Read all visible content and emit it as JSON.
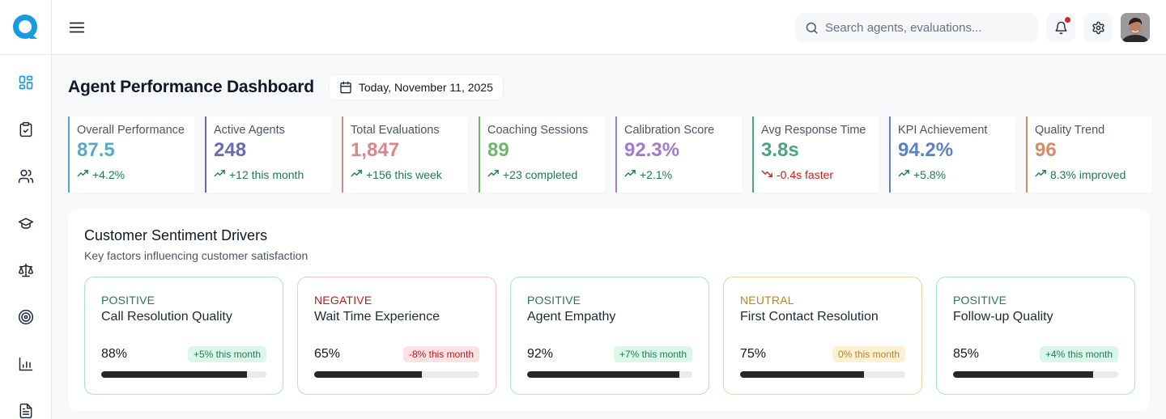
{
  "app": {
    "logo_letter": "Q",
    "brand_color": "#1a9be0"
  },
  "header": {
    "search_placeholder": "Search agents, evaluations...",
    "notification_dot": true
  },
  "sidebar": {
    "items": [
      {
        "name": "dashboard",
        "icon": "layout-grid-icon",
        "active": true
      },
      {
        "name": "evaluations",
        "icon": "clipboard-check-icon",
        "active": false
      },
      {
        "name": "agents",
        "icon": "users-icon",
        "active": false
      },
      {
        "name": "coaching",
        "icon": "graduation-cap-icon",
        "active": false
      },
      {
        "name": "calibration",
        "icon": "scale-icon",
        "active": false
      },
      {
        "name": "goals",
        "icon": "target-icon",
        "active": false
      },
      {
        "name": "reports",
        "icon": "bar-chart-icon",
        "active": false
      },
      {
        "name": "documents",
        "icon": "file-text-icon",
        "active": false
      }
    ]
  },
  "main": {
    "title": "Agent Performance Dashboard",
    "date": "Today, November 11, 2025",
    "kpis": [
      {
        "label": "Overall Performance",
        "value": "87.5",
        "delta": "+4.2%",
        "trend": "up",
        "color": "#5aa9c9"
      },
      {
        "label": "Active Agents",
        "value": "248",
        "delta": "+12 this month",
        "trend": "up",
        "color": "#6b68b5"
      },
      {
        "label": "Total Evaluations",
        "value": "1,847",
        "delta": "+156 this week",
        "trend": "up",
        "color": "#d9868a"
      },
      {
        "label": "Coaching Sessions",
        "value": "89",
        "delta": "+23 completed",
        "trend": "up",
        "color": "#6fb56a"
      },
      {
        "label": "Calibration Score",
        "value": "92.3%",
        "delta": "+2.1%",
        "trend": "up",
        "color": "#a47bc9"
      },
      {
        "label": "Avg Response Time",
        "value": "3.8s",
        "delta": "-0.4s faster",
        "trend": "down",
        "color": "#4ba582"
      },
      {
        "label": "KPI Achievement",
        "value": "94.2%",
        "delta": "+5.8%",
        "trend": "up",
        "color": "#5b82c4"
      },
      {
        "label": "Quality Trend",
        "value": "96",
        "delta": "8.3% improved",
        "trend": "up",
        "color": "#d98b66"
      }
    ],
    "sentiment": {
      "title": "Customer Sentiment Drivers",
      "subtitle": "Key factors influencing customer satisfaction",
      "drivers": [
        {
          "sentiment": "POSITIVE",
          "name": "Call Resolution Quality",
          "percent": "88%",
          "value": 88,
          "change": "+5% this month",
          "type": "positive"
        },
        {
          "sentiment": "NEGATIVE",
          "name": "Wait Time Experience",
          "percent": "65%",
          "value": 65,
          "change": "-8% this month",
          "type": "negative"
        },
        {
          "sentiment": "POSITIVE",
          "name": "Agent Empathy",
          "percent": "92%",
          "value": 92,
          "change": "+7% this month",
          "type": "positive"
        },
        {
          "sentiment": "NEUTRAL",
          "name": "First Contact Resolution",
          "percent": "75%",
          "value": 75,
          "change": "0% this month",
          "type": "neutral"
        },
        {
          "sentiment": "POSITIVE",
          "name": "Follow-up Quality",
          "percent": "85%",
          "value": 85,
          "change": "+4% this month",
          "type": "positive"
        }
      ]
    }
  },
  "theme": {
    "positive": {
      "text": "#1f7a55",
      "border": "#a7e3d4",
      "badge_bg": "#dcf7ea",
      "badge_text": "#1f7a55"
    },
    "negative": {
      "text": "#b91c1c",
      "border": "#f6c6cc",
      "badge_bg": "#fde2e4",
      "badge_text": "#b91c1c"
    },
    "neutral": {
      "text": "#b5862a",
      "border": "#f2d59a",
      "badge_bg": "#fdf0d5",
      "badge_text": "#b5862a"
    },
    "trend_up": "#1f7a55",
    "trend_down": "#c81e1e"
  }
}
